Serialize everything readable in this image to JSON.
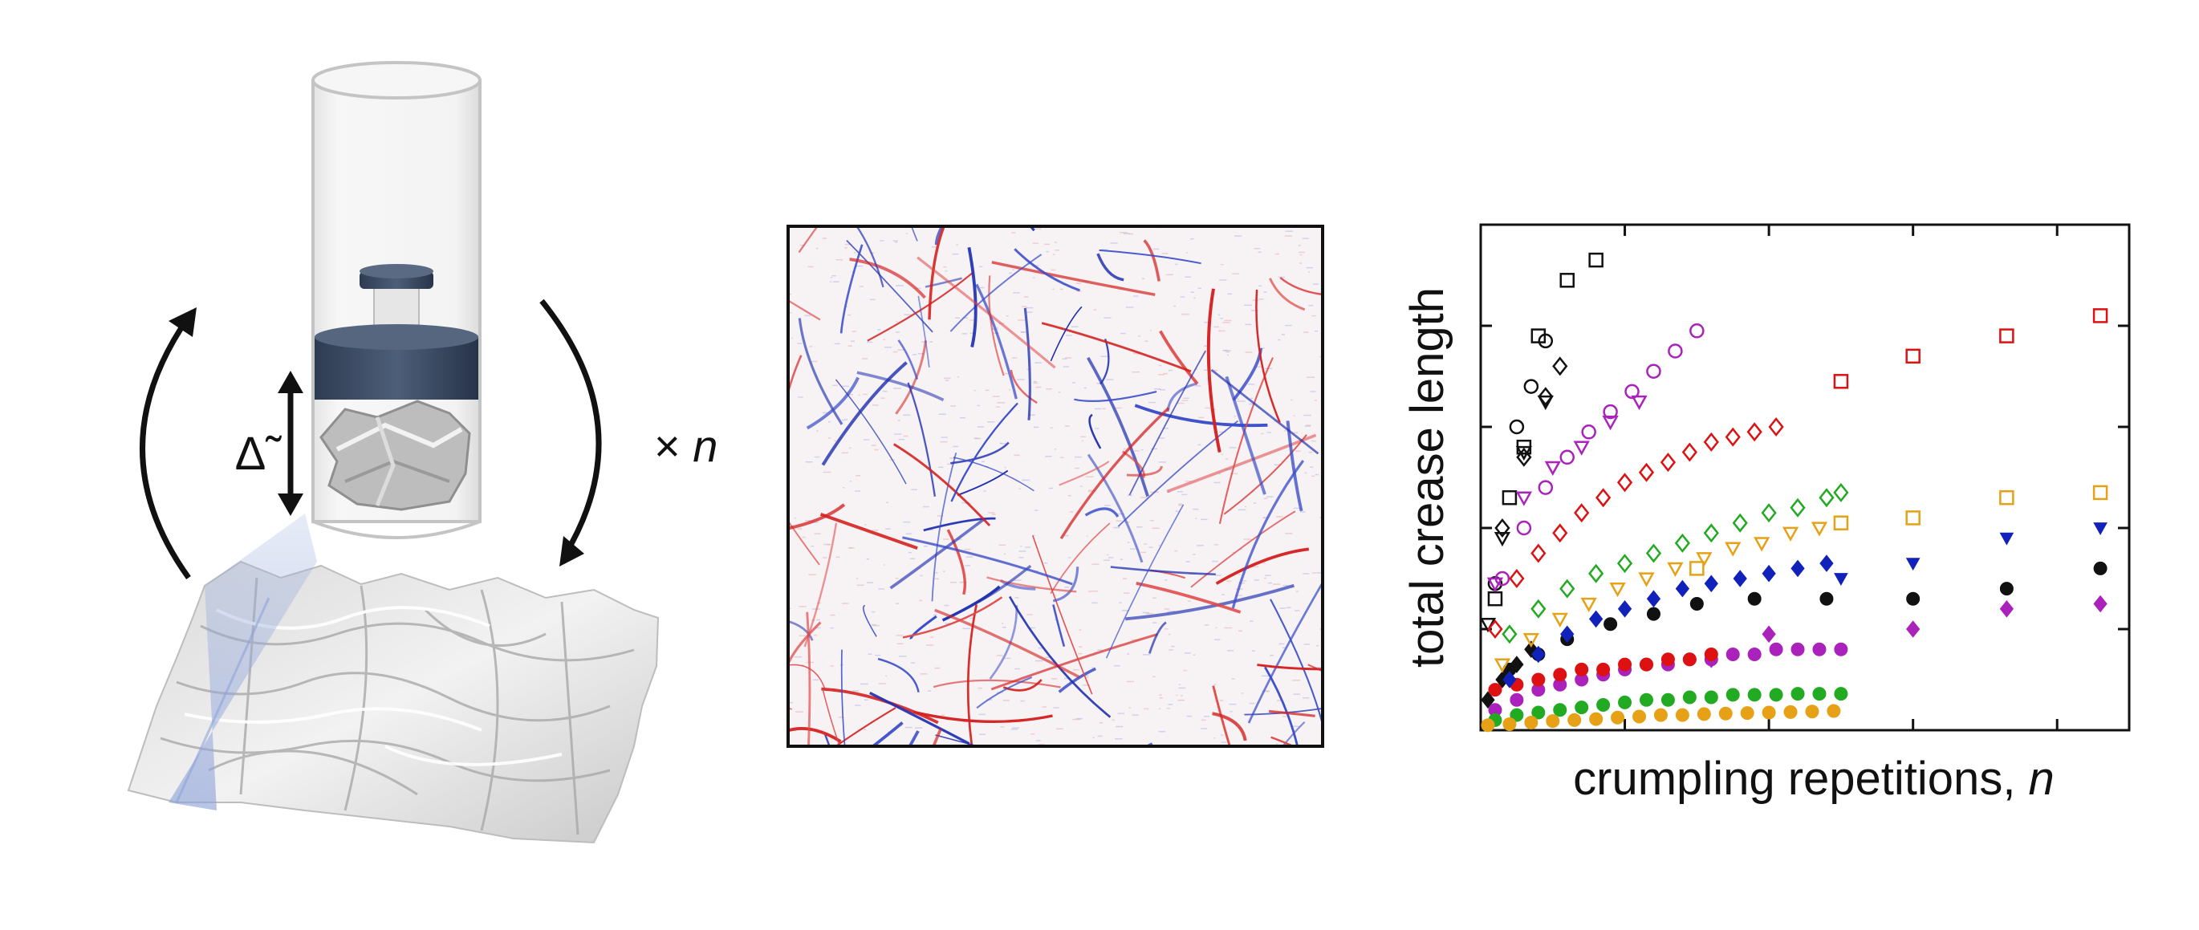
{
  "apparatus": {
    "height_label": "Δ̃",
    "repeat_label_prefix": "× ",
    "repeat_label_var": "n"
  },
  "chart_data": {
    "type": "scatter",
    "title": "",
    "xlabel_text": "crumpling repetitions, ",
    "xlabel_var": "n",
    "ylabel": "total crease length",
    "xlim": [
      0,
      90
    ],
    "ylim": [
      0,
      10
    ],
    "xticks": [
      20,
      40,
      60,
      80
    ],
    "yticks": [
      2,
      4,
      6,
      8
    ],
    "show_tick_labels": false,
    "legend": "none",
    "series": [
      {
        "color": "#111111",
        "marker": "square-open",
        "x": [
          2,
          4,
          6,
          8,
          12,
          16
        ],
        "y": [
          2.6,
          4.6,
          5.6,
          7.8,
          8.9,
          9.3
        ]
      },
      {
        "color": "#111111",
        "marker": "circle-open",
        "x": [
          2,
          5,
          7,
          9
        ],
        "y": [
          2.9,
          6.0,
          6.8,
          7.7
        ]
      },
      {
        "color": "#111111",
        "marker": "triangle-down-open",
        "x": [
          1,
          3,
          6,
          9
        ],
        "y": [
          2.1,
          3.8,
          5.5,
          6.5
        ]
      },
      {
        "color": "#111111",
        "marker": "diamond-open",
        "x": [
          3,
          6,
          9,
          11
        ],
        "y": [
          4.0,
          5.4,
          6.6,
          7.2
        ]
      },
      {
        "color": "#111111",
        "marker": "diamond-filled",
        "x": [
          1,
          3,
          5,
          7
        ],
        "y": [
          0.6,
          1.0,
          1.3,
          1.6
        ]
      },
      {
        "color": "#111111",
        "marker": "circle-filled",
        "x": [
          4,
          8,
          12,
          18,
          24,
          30,
          38,
          48,
          60,
          73,
          86
        ],
        "y": [
          1.2,
          1.5,
          1.8,
          2.1,
          2.3,
          2.5,
          2.6,
          2.6,
          2.6,
          2.8,
          3.2
        ]
      },
      {
        "color": "#aa22bb",
        "marker": "circle-open",
        "x": [
          3,
          6,
          9,
          12,
          15,
          18,
          21,
          24,
          27,
          30
        ],
        "y": [
          3.0,
          4.0,
          4.8,
          5.4,
          5.9,
          6.3,
          6.7,
          7.1,
          7.5,
          7.9
        ]
      },
      {
        "color": "#aa22bb",
        "marker": "triangle-down-open",
        "x": [
          2,
          6,
          10,
          14,
          18,
          22
        ],
        "y": [
          2.9,
          4.6,
          5.2,
          5.6,
          6.1,
          6.5
        ]
      },
      {
        "color": "#aa22bb",
        "marker": "circle-filled",
        "x": [
          2,
          5,
          8,
          11,
          14,
          17,
          20,
          23,
          26,
          29,
          32,
          35,
          38,
          41,
          44,
          47,
          50
        ],
        "y": [
          0.4,
          0.6,
          0.8,
          0.9,
          1.0,
          1.1,
          1.2,
          1.3,
          1.3,
          1.4,
          1.4,
          1.5,
          1.5,
          1.6,
          1.6,
          1.6,
          1.6
        ]
      },
      {
        "color": "#aa22bb",
        "marker": "diamond-filled",
        "x": [
          32,
          40,
          60,
          73,
          86
        ],
        "y": [
          1.4,
          1.9,
          2.0,
          2.4,
          2.5
        ]
      },
      {
        "color": "#dd1111",
        "marker": "diamond-open",
        "x": [
          2,
          5,
          8,
          11,
          14,
          17,
          20,
          23,
          26,
          29,
          32,
          35,
          38,
          41
        ],
        "y": [
          2.0,
          3.0,
          3.5,
          3.9,
          4.3,
          4.6,
          4.9,
          5.1,
          5.3,
          5.5,
          5.7,
          5.8,
          5.9,
          6.0
        ]
      },
      {
        "color": "#dd1111",
        "marker": "square-open",
        "x": [
          50,
          60,
          73,
          86
        ],
        "y": [
          6.9,
          7.4,
          7.8,
          8.2
        ]
      },
      {
        "color": "#dd1111",
        "marker": "circle-filled",
        "x": [
          2,
          5,
          8,
          11,
          14,
          17,
          20,
          23,
          26,
          29,
          32
        ],
        "y": [
          0.8,
          0.9,
          1.0,
          1.1,
          1.2,
          1.2,
          1.3,
          1.3,
          1.4,
          1.4,
          1.5
        ]
      },
      {
        "color": "#22aa22",
        "marker": "diamond-open",
        "x": [
          4,
          8,
          12,
          16,
          20,
          24,
          28,
          32,
          36,
          40,
          44,
          48,
          50
        ],
        "y": [
          1.9,
          2.4,
          2.8,
          3.1,
          3.3,
          3.5,
          3.7,
          3.9,
          4.1,
          4.3,
          4.4,
          4.6,
          4.7
        ]
      },
      {
        "color": "#22aa22",
        "marker": "circle-filled",
        "x": [
          2,
          5,
          8,
          11,
          14,
          17,
          20,
          23,
          26,
          29,
          32,
          35,
          38,
          41,
          44,
          47,
          50
        ],
        "y": [
          0.2,
          0.3,
          0.35,
          0.4,
          0.45,
          0.5,
          0.55,
          0.6,
          0.6,
          0.65,
          0.65,
          0.7,
          0.7,
          0.7,
          0.72,
          0.72,
          0.72
        ]
      },
      {
        "color": "#e6a117",
        "marker": "triangle-down-open",
        "x": [
          3,
          7,
          11,
          15,
          19,
          23,
          27,
          31,
          35,
          39,
          43,
          47
        ],
        "y": [
          1.3,
          1.8,
          2.2,
          2.5,
          2.8,
          3.0,
          3.2,
          3.4,
          3.6,
          3.7,
          3.9,
          4.0
        ]
      },
      {
        "color": "#e6a117",
        "marker": "square-open",
        "x": [
          30,
          50,
          60,
          73,
          86
        ],
        "y": [
          3.2,
          4.1,
          4.2,
          4.6,
          4.7
        ]
      },
      {
        "color": "#e6a117",
        "marker": "circle-filled",
        "x": [
          1,
          4,
          7,
          10,
          13,
          16,
          19,
          22,
          25,
          28,
          31,
          34,
          37,
          40,
          43,
          46,
          49
        ],
        "y": [
          0.1,
          0.12,
          0.15,
          0.18,
          0.2,
          0.22,
          0.25,
          0.27,
          0.3,
          0.3,
          0.32,
          0.33,
          0.34,
          0.35,
          0.36,
          0.37,
          0.38
        ]
      },
      {
        "color": "#1122bb",
        "marker": "diamond-filled",
        "x": [
          4,
          8,
          12,
          16,
          20,
          24,
          28,
          32,
          36,
          40,
          44,
          48
        ],
        "y": [
          1.0,
          1.5,
          1.9,
          2.2,
          2.4,
          2.6,
          2.8,
          2.9,
          3.0,
          3.1,
          3.2,
          3.3
        ]
      },
      {
        "color": "#1122bb",
        "marker": "triangle-down-filled",
        "x": [
          50,
          60,
          73,
          86
        ],
        "y": [
          3.0,
          3.3,
          3.8,
          4.0
        ]
      }
    ]
  }
}
